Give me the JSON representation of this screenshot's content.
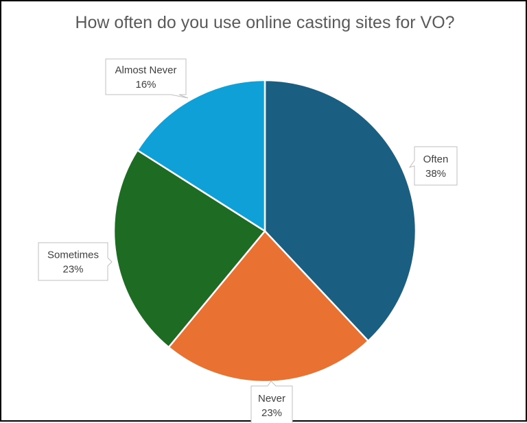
{
  "chart_data": {
    "type": "pie",
    "title": "How often do you use online casting sites for VO?",
    "categories": [
      "Often",
      "Never",
      "Sometimes",
      "Almost Never"
    ],
    "values": [
      38,
      23,
      23,
      16
    ],
    "labels": [
      "38%",
      "23%",
      "23%",
      "16%"
    ],
    "colors": [
      "#1a5e82",
      "#e97132",
      "#1e6b24",
      "#10a0d8"
    ],
    "legend": "none",
    "data_labels": "callouts"
  }
}
